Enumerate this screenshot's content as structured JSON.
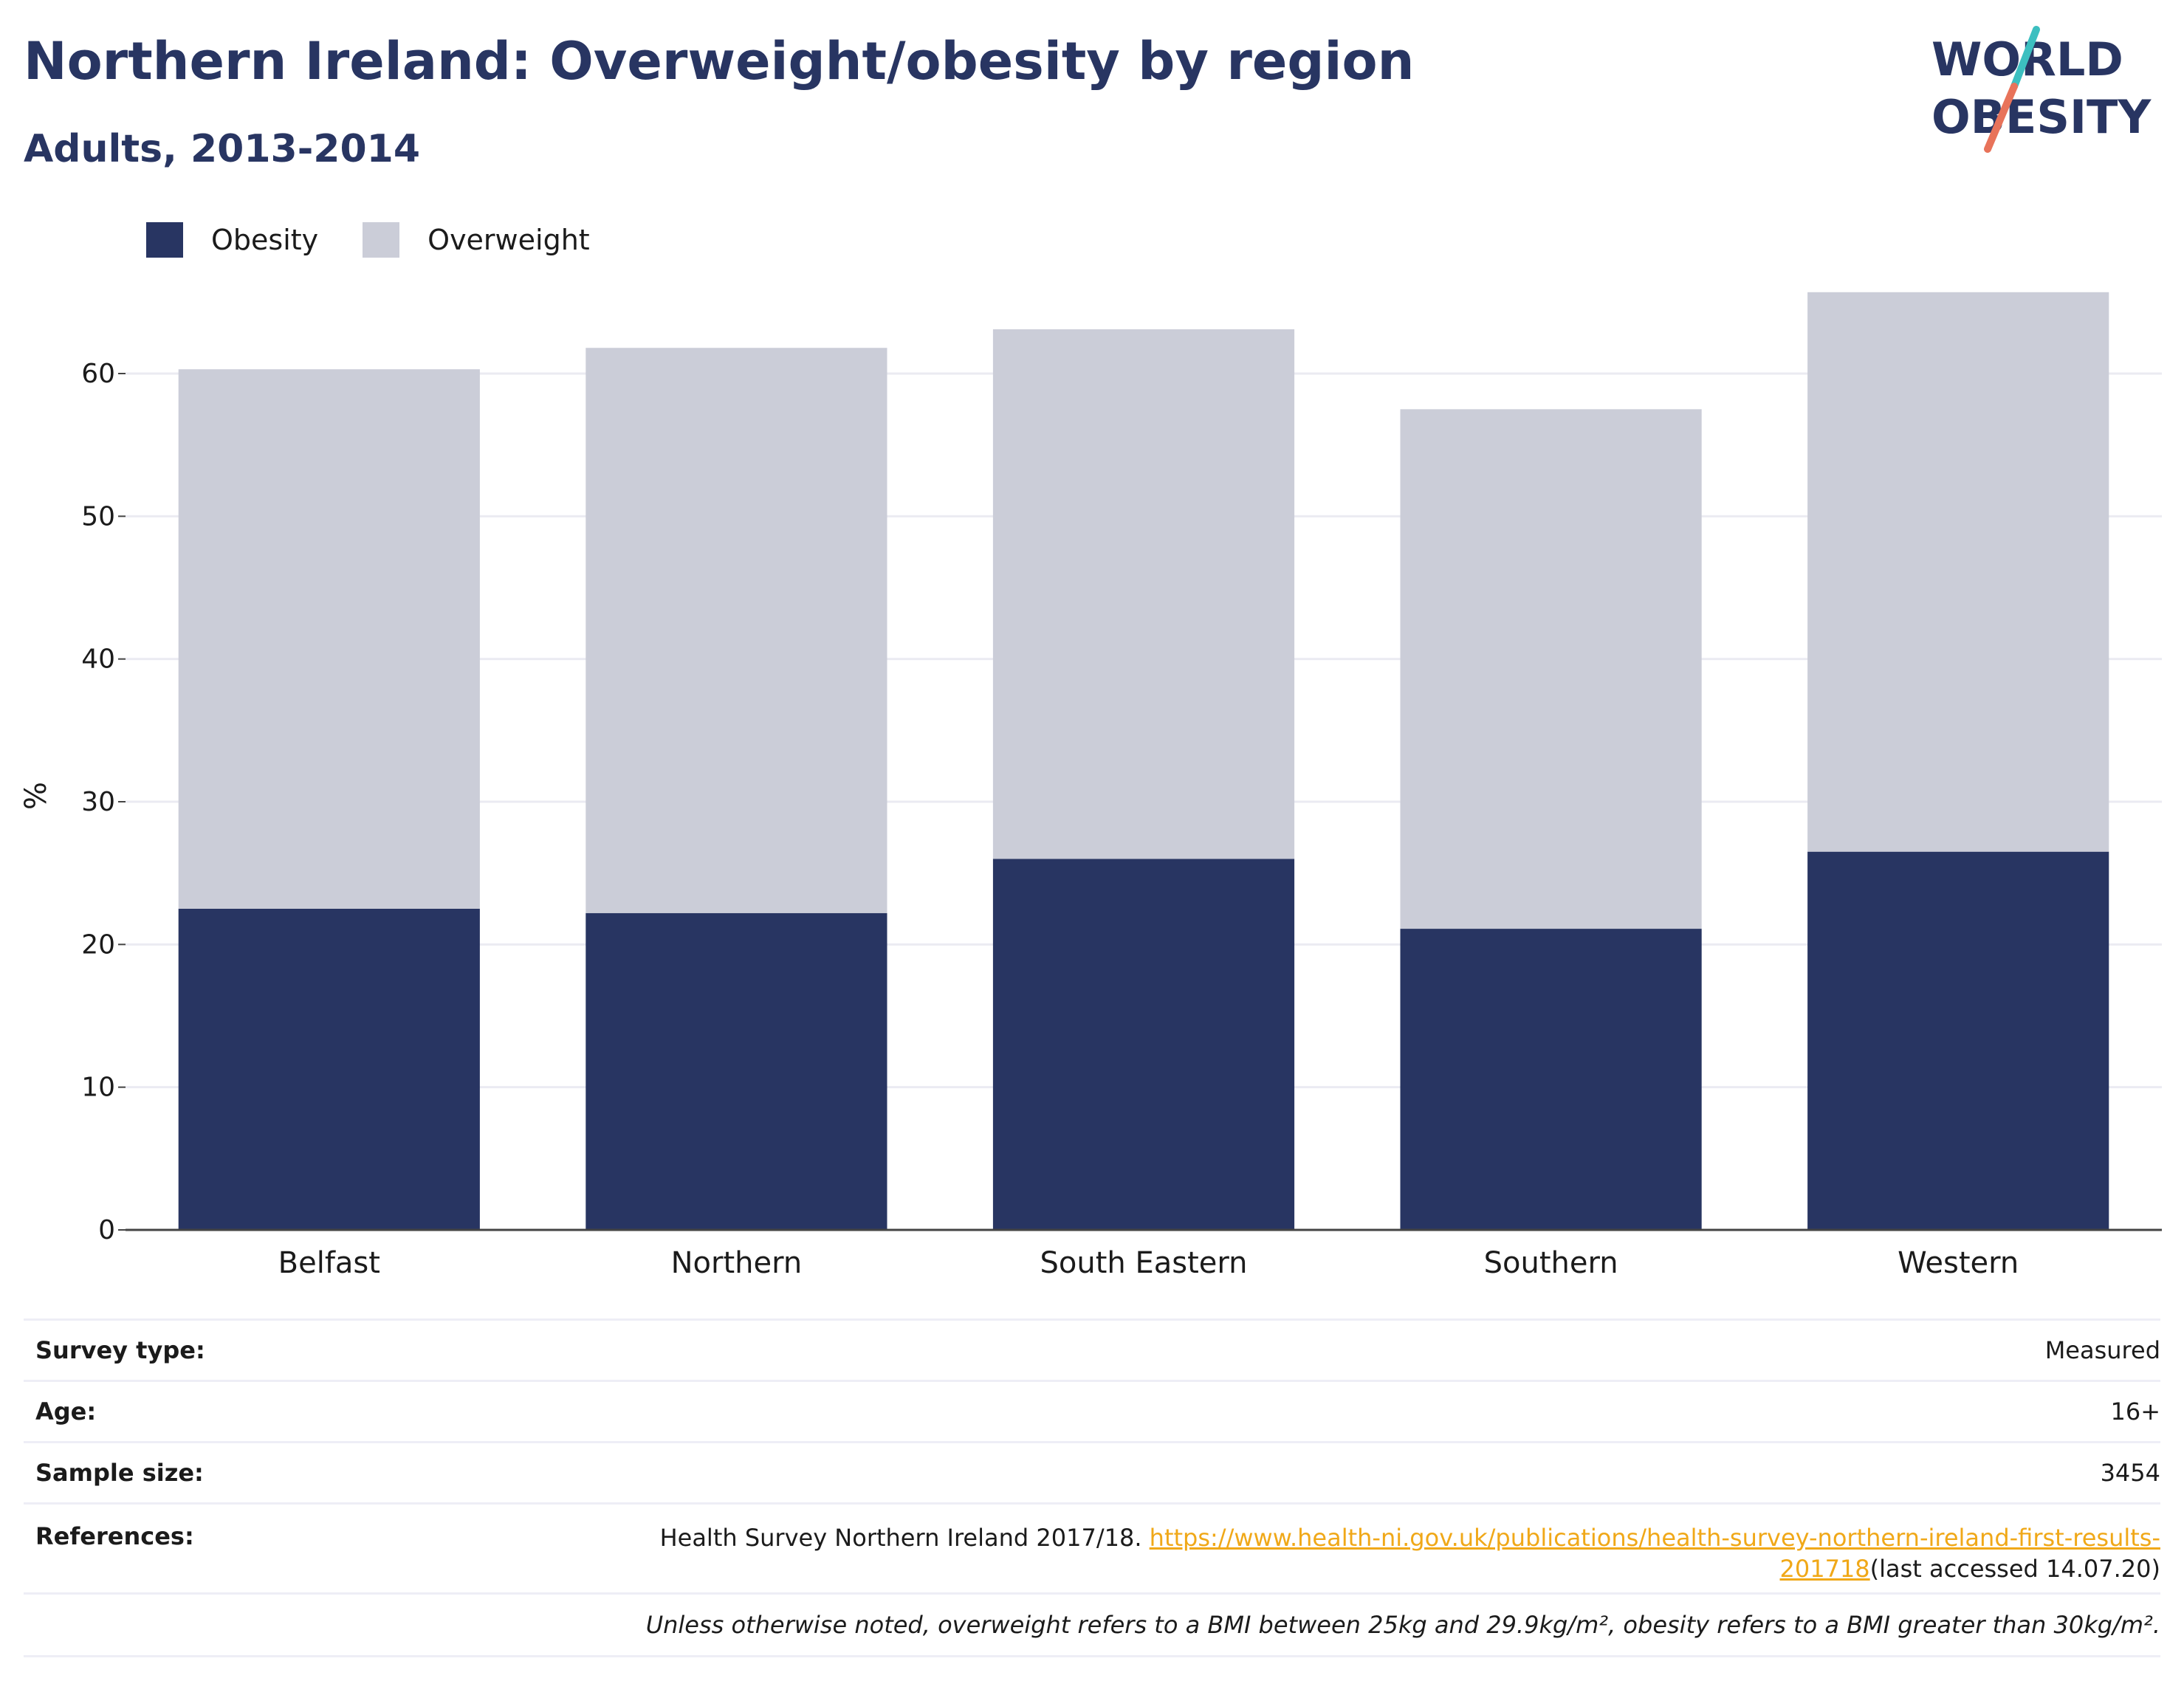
{
  "header": {
    "title": "Northern Ireland: Overweight/obesity by region",
    "subtitle": "Adults, 2013-2014"
  },
  "logo": {
    "line1": "WORLD",
    "line2": "OBESITY"
  },
  "colors": {
    "obesity": "#283562",
    "overweight": "#cbcdd8",
    "accent_teal": "#3cbfc0",
    "accent_orange": "#e8735a",
    "link": "#f0a818"
  },
  "legend": {
    "items": [
      "Obesity",
      "Overweight"
    ]
  },
  "chart_data": {
    "type": "bar",
    "stacked": true,
    "categories": [
      "Belfast",
      "Northern",
      "South Eastern",
      "Southern",
      "Western"
    ],
    "series": [
      {
        "name": "Obesity",
        "values": [
          22.5,
          22.2,
          26.0,
          21.1,
          26.5
        ]
      },
      {
        "name": "Overweight",
        "values": [
          37.8,
          39.6,
          37.1,
          36.4,
          39.2
        ]
      }
    ],
    "ylabel": "%",
    "xlabel": "",
    "ylim": [
      0,
      66
    ],
    "yticks": [
      0,
      10,
      20,
      30,
      40,
      50,
      60
    ],
    "grid": true,
    "legend_position": "top-left"
  },
  "info": {
    "survey_type": {
      "label": "Survey type:",
      "value": "Measured"
    },
    "age": {
      "label": "Age:",
      "value": "16+"
    },
    "sample_size": {
      "label": "Sample size:",
      "value": "3454"
    },
    "references": {
      "label": "References:",
      "text_before": "Health Survey Northern Ireland 2017/18. ",
      "link_line1": "https://www.health-ni.gov.uk/publications/health-survey-northern-ireland-first-results-",
      "link_line2": "201718",
      "text_after": "(last accessed 14.07.20)"
    },
    "footnote": "Unless otherwise noted, overweight refers to a BMI between 25kg and 29.9kg/m², obesity refers to a BMI greater than 30kg/m²."
  }
}
